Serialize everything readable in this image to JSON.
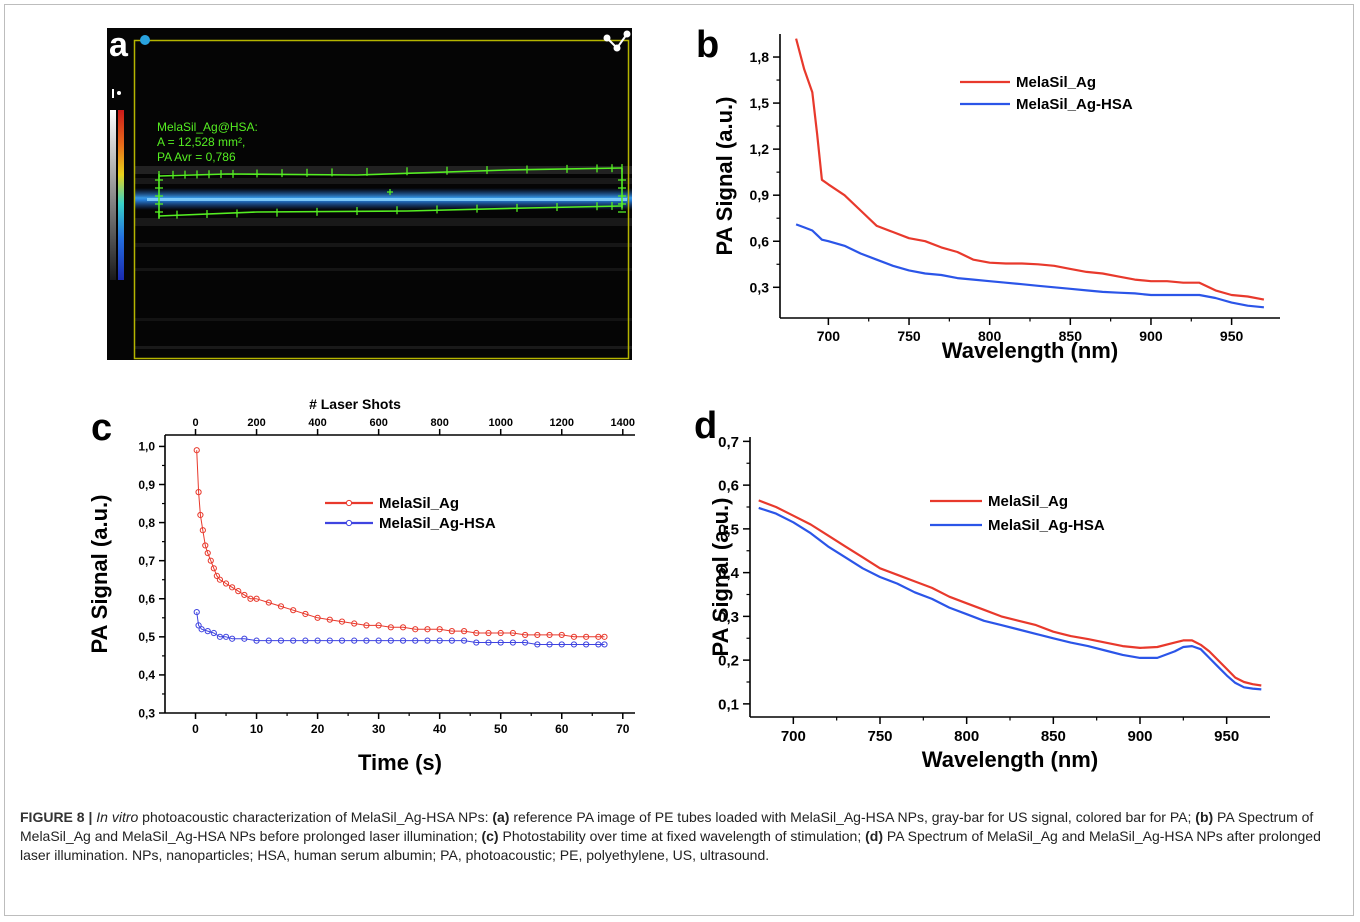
{
  "panels": {
    "a": {
      "letter": "a",
      "roi_text": [
        "MelaSil_Ag@HSA:",
        "A = 12,528 mm²,",
        "PA Avr = 0,786"
      ],
      "colors": {
        "roi": "#55ee22",
        "frame": "#b5b500",
        "dot": "#29a3e0"
      }
    },
    "b": {
      "letter": "b"
    },
    "c": {
      "letter": "c"
    },
    "d": {
      "letter": "d"
    }
  },
  "chart_data": [
    {
      "id": "b",
      "type": "line",
      "xlabel": "Wavelength (nm)",
      "ylabel": "PA Signal (a.u.)",
      "xlim": [
        670,
        980
      ],
      "ylim": [
        0.1,
        1.95
      ],
      "xticks": [
        700,
        750,
        800,
        850,
        900,
        950
      ],
      "xtick_labels": [
        "700",
        "750",
        "800",
        "850",
        "900",
        "950"
      ],
      "yticks": [
        0.3,
        0.6,
        0.9,
        1.2,
        1.5,
        1.8
      ],
      "ytick_labels": [
        "0,3",
        "0,6",
        "0,9",
        "1,2",
        "1,5",
        "1,8"
      ],
      "legend_position": "top-right",
      "series": [
        {
          "name": "MelaSil_Ag",
          "color": "#e8392c",
          "x": [
            680,
            685,
            690,
            693,
            696,
            700,
            710,
            720,
            730,
            740,
            750,
            760,
            770,
            780,
            790,
            800,
            810,
            820,
            830,
            840,
            850,
            860,
            870,
            880,
            890,
            900,
            910,
            920,
            930,
            940,
            950,
            960,
            970
          ],
          "y": [
            1.92,
            1.72,
            1.57,
            1.3,
            1.0,
            0.97,
            0.9,
            0.8,
            0.7,
            0.66,
            0.62,
            0.6,
            0.56,
            0.53,
            0.48,
            0.46,
            0.455,
            0.455,
            0.45,
            0.44,
            0.42,
            0.4,
            0.39,
            0.37,
            0.35,
            0.34,
            0.34,
            0.33,
            0.33,
            0.28,
            0.25,
            0.24,
            0.22
          ]
        },
        {
          "name": "MelaSil_Ag-HSA",
          "color": "#2b55e8",
          "x": [
            680,
            685,
            690,
            693,
            696,
            700,
            710,
            720,
            730,
            740,
            750,
            760,
            770,
            780,
            790,
            800,
            810,
            820,
            830,
            840,
            850,
            860,
            870,
            880,
            890,
            900,
            910,
            920,
            930,
            940,
            950,
            960,
            970
          ],
          "y": [
            0.71,
            0.69,
            0.67,
            0.64,
            0.61,
            0.6,
            0.57,
            0.52,
            0.48,
            0.44,
            0.41,
            0.39,
            0.38,
            0.36,
            0.35,
            0.34,
            0.33,
            0.32,
            0.31,
            0.3,
            0.29,
            0.28,
            0.27,
            0.265,
            0.26,
            0.25,
            0.25,
            0.25,
            0.25,
            0.23,
            0.2,
            0.18,
            0.17
          ]
        }
      ]
    },
    {
      "id": "c",
      "type": "scatter",
      "xlabel": "Time (s)",
      "ylabel": "PA Signal (a.u.)",
      "x2label": "# Laser Shots",
      "xlim": [
        -5,
        72
      ],
      "ylim": [
        0.3,
        1.03
      ],
      "xticks": [
        0,
        10,
        20,
        30,
        40,
        50,
        60,
        70
      ],
      "xtick_labels": [
        "0",
        "10",
        "20",
        "30",
        "40",
        "50",
        "60",
        "70"
      ],
      "x2ticks": [
        0,
        200,
        400,
        600,
        800,
        1000,
        1200,
        1400
      ],
      "x2tick_labels": [
        "0",
        "200",
        "400",
        "600",
        "800",
        "1000",
        "1200",
        "1400"
      ],
      "x2_per_x": 20,
      "yticks": [
        0.3,
        0.4,
        0.5,
        0.6,
        0.7,
        0.8,
        0.9,
        1.0
      ],
      "ytick_labels": [
        "0,3",
        "0,4",
        "0,5",
        "0,6",
        "0,7",
        "0,8",
        "0,9",
        "1,0"
      ],
      "legend_position": "center-right",
      "series": [
        {
          "name": "MelaSil_Ag",
          "color": "#e8392c",
          "x": [
            0.2,
            0.5,
            0.8,
            1.2,
            1.6,
            2,
            2.5,
            3,
            3.5,
            4,
            5,
            6,
            7,
            8,
            9,
            10,
            12,
            14,
            16,
            18,
            20,
            22,
            24,
            26,
            28,
            30,
            32,
            34,
            36,
            38,
            40,
            42,
            44,
            46,
            48,
            50,
            52,
            54,
            56,
            58,
            60,
            62,
            64,
            66,
            67
          ],
          "y": [
            0.99,
            0.88,
            0.82,
            0.78,
            0.74,
            0.72,
            0.7,
            0.68,
            0.66,
            0.65,
            0.64,
            0.63,
            0.62,
            0.61,
            0.6,
            0.6,
            0.59,
            0.58,
            0.57,
            0.56,
            0.55,
            0.545,
            0.54,
            0.535,
            0.53,
            0.53,
            0.525,
            0.525,
            0.52,
            0.52,
            0.52,
            0.515,
            0.515,
            0.51,
            0.51,
            0.51,
            0.51,
            0.505,
            0.505,
            0.505,
            0.505,
            0.5,
            0.5,
            0.5,
            0.5
          ]
        },
        {
          "name": "MelaSil_Ag-HSA",
          "color": "#3f44e0",
          "x": [
            0.2,
            0.5,
            1,
            2,
            3,
            4,
            5,
            6,
            8,
            10,
            12,
            14,
            16,
            18,
            20,
            22,
            24,
            26,
            28,
            30,
            32,
            34,
            36,
            38,
            40,
            42,
            44,
            46,
            48,
            50,
            52,
            54,
            56,
            58,
            60,
            62,
            64,
            66,
            67
          ],
          "y": [
            0.565,
            0.53,
            0.52,
            0.515,
            0.51,
            0.5,
            0.5,
            0.495,
            0.495,
            0.49,
            0.49,
            0.49,
            0.49,
            0.49,
            0.49,
            0.49,
            0.49,
            0.49,
            0.49,
            0.49,
            0.49,
            0.49,
            0.49,
            0.49,
            0.49,
            0.49,
            0.49,
            0.485,
            0.485,
            0.485,
            0.485,
            0.485,
            0.48,
            0.48,
            0.48,
            0.48,
            0.48,
            0.48,
            0.48
          ]
        }
      ]
    },
    {
      "id": "d",
      "type": "line",
      "xlabel": "Wavelength (nm)",
      "ylabel": "PA Signal (a.u.)",
      "xlim": [
        675,
        975
      ],
      "ylim": [
        0.07,
        0.71
      ],
      "xticks": [
        700,
        750,
        800,
        850,
        900,
        950
      ],
      "xtick_labels": [
        "700",
        "750",
        "800",
        "850",
        "900",
        "950"
      ],
      "yticks": [
        0.1,
        0.2,
        0.3,
        0.4,
        0.5,
        0.6,
        0.7
      ],
      "ytick_labels": [
        "0,1",
        "0,2",
        "0,3",
        "0,4",
        "0,5",
        "0,6",
        "0,7"
      ],
      "legend_position": "top-right",
      "series": [
        {
          "name": "MelaSil_Ag",
          "color": "#e8392c",
          "x": [
            680,
            690,
            700,
            710,
            720,
            730,
            740,
            750,
            760,
            770,
            780,
            790,
            800,
            810,
            820,
            830,
            840,
            850,
            860,
            870,
            880,
            890,
            900,
            910,
            920,
            925,
            930,
            935,
            940,
            945,
            950,
            955,
            960,
            965,
            970
          ],
          "y": [
            0.565,
            0.55,
            0.53,
            0.51,
            0.485,
            0.46,
            0.435,
            0.41,
            0.395,
            0.38,
            0.365,
            0.345,
            0.33,
            0.315,
            0.3,
            0.29,
            0.28,
            0.265,
            0.255,
            0.248,
            0.24,
            0.232,
            0.228,
            0.23,
            0.24,
            0.245,
            0.245,
            0.235,
            0.22,
            0.2,
            0.18,
            0.16,
            0.15,
            0.145,
            0.142
          ]
        },
        {
          "name": "MelaSil_Ag-HSA",
          "color": "#2b55e8",
          "x": [
            680,
            690,
            700,
            710,
            720,
            730,
            740,
            750,
            760,
            770,
            780,
            790,
            800,
            810,
            820,
            830,
            840,
            850,
            860,
            870,
            880,
            890,
            900,
            910,
            920,
            925,
            930,
            935,
            940,
            945,
            950,
            955,
            960,
            965,
            970
          ],
          "y": [
            0.548,
            0.535,
            0.515,
            0.49,
            0.46,
            0.435,
            0.41,
            0.39,
            0.375,
            0.355,
            0.34,
            0.32,
            0.305,
            0.29,
            0.28,
            0.27,
            0.26,
            0.25,
            0.24,
            0.232,
            0.222,
            0.212,
            0.205,
            0.205,
            0.22,
            0.23,
            0.232,
            0.225,
            0.205,
            0.185,
            0.165,
            0.148,
            0.138,
            0.135,
            0.133
          ]
        }
      ]
    }
  ],
  "caption": {
    "label": "FIGURE 8 |",
    "italic_lead": "In vitro",
    "parts": [
      {
        "bold": false,
        "text": " photoacoustic characterization of MelaSil_Ag-HSA NPs: "
      },
      {
        "bold": true,
        "text": "(a)"
      },
      {
        "bold": false,
        "text": " reference PA image of PE tubes loaded with MelaSil_Ag-HSA NPs, gray-bar for US signal, colored bar for PA; "
      },
      {
        "bold": true,
        "text": "(b)"
      },
      {
        "bold": false,
        "text": " PA Spectrum of MelaSil_Ag and MelaSil_Ag-HSA NPs before prolonged laser illumination; "
      },
      {
        "bold": true,
        "text": "(c)"
      },
      {
        "bold": false,
        "text": " Photostability over time at fixed wavelength of stimulation; "
      },
      {
        "bold": true,
        "text": "(d)"
      },
      {
        "bold": false,
        "text": " PA Spectrum of MelaSil_Ag and MelaSil_Ag-HSA NPs after prolonged laser illumination. NPs, nanoparticles; HSA, human serum albumin; PA, photoacoustic; PE, polyethylene, US, ultrasound."
      }
    ]
  }
}
